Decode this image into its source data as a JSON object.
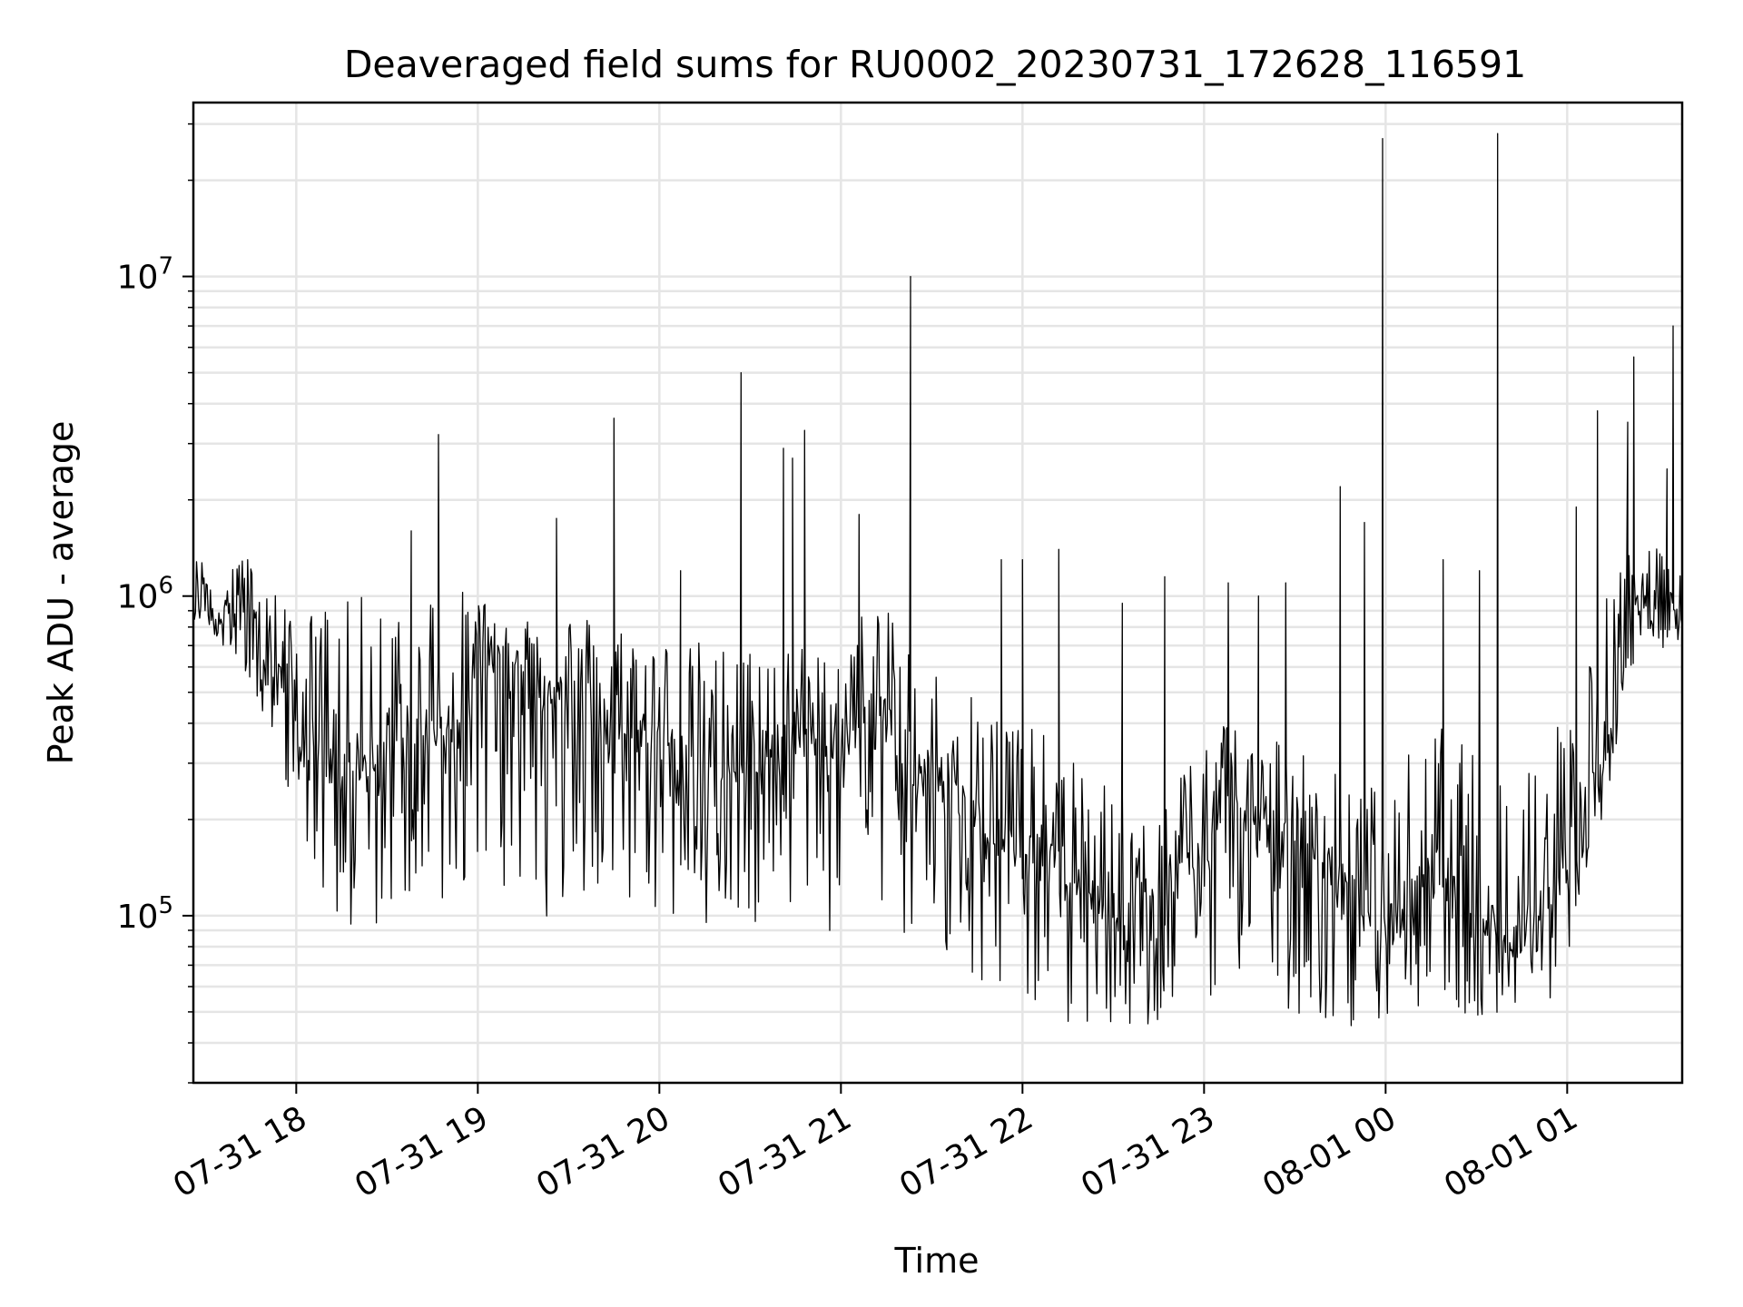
{
  "chart_data": {
    "type": "line",
    "title": "Deaveraged field sums for RU0002_20230731_172628_116591",
    "xlabel": "Time",
    "ylabel": "Peak ADU - average",
    "yscale": "log",
    "ylim": [
      30000,
      35000000
    ],
    "xlim": [
      "2023-07-31 17:26",
      "2023-08-01 01:38"
    ],
    "grid": true,
    "line_color": "#000000",
    "grid_color": "#e5e5e5",
    "x_ticks": [
      {
        "value": "2023-07-31 18:00",
        "label": "07-31 18"
      },
      {
        "value": "2023-07-31 19:00",
        "label": "07-31 19"
      },
      {
        "value": "2023-07-31 20:00",
        "label": "07-31 20"
      },
      {
        "value": "2023-07-31 21:00",
        "label": "07-31 21"
      },
      {
        "value": "2023-07-31 22:00",
        "label": "07-31 22"
      },
      {
        "value": "2023-07-31 23:00",
        "label": "07-31 23"
      },
      {
        "value": "2023-08-01 00:00",
        "label": "08-01 00"
      },
      {
        "value": "2023-08-01 01:00",
        "label": "08-01 01"
      }
    ],
    "y_ticks": [
      {
        "value": 100000,
        "base": "10",
        "exp": "5"
      },
      {
        "value": 1000000,
        "base": "10",
        "exp": "6"
      },
      {
        "value": 10000000,
        "base": "10",
        "exp": "7"
      }
    ],
    "series": [
      {
        "x": [
          "2023-07-31 17:26",
          "2023-07-31 17:30",
          "2023-07-31 17:35",
          "2023-07-31 17:40",
          "2023-07-31 17:45",
          "2023-07-31 17:50",
          "2023-07-31 17:55",
          "2023-07-31 18:00",
          "2023-07-31 18:05",
          "2023-07-31 18:10",
          "2023-07-31 18:15",
          "2023-07-31 18:20",
          "2023-07-31 18:25",
          "2023-07-31 18:30",
          "2023-07-31 18:35",
          "2023-07-31 18:40",
          "2023-07-31 18:45",
          "2023-07-31 18:50",
          "2023-07-31 18:55",
          "2023-07-31 19:00",
          "2023-07-31 19:05",
          "2023-07-31 19:10",
          "2023-07-31 19:15",
          "2023-07-31 19:20",
          "2023-07-31 19:25",
          "2023-07-31 19:30",
          "2023-07-31 19:35",
          "2023-07-31 19:40",
          "2023-07-31 19:45",
          "2023-07-31 19:50",
          "2023-07-31 19:55",
          "2023-07-31 20:00",
          "2023-07-31 20:05",
          "2023-07-31 20:10",
          "2023-07-31 20:15",
          "2023-07-31 20:20",
          "2023-07-31 20:25",
          "2023-07-31 20:30",
          "2023-07-31 20:35",
          "2023-07-31 20:40",
          "2023-07-31 20:45",
          "2023-07-31 20:50",
          "2023-07-31 20:55",
          "2023-07-31 21:00",
          "2023-07-31 21:05",
          "2023-07-31 21:10",
          "2023-07-31 21:15",
          "2023-07-31 21:20",
          "2023-07-31 21:25",
          "2023-07-31 21:30",
          "2023-07-31 21:35",
          "2023-07-31 21:40",
          "2023-07-31 21:45",
          "2023-07-31 21:50",
          "2023-07-31 21:55",
          "2023-07-31 22:00",
          "2023-07-31 22:05",
          "2023-07-31 22:10",
          "2023-07-31 22:15",
          "2023-07-31 22:20",
          "2023-07-31 22:25",
          "2023-07-31 22:30",
          "2023-07-31 22:35",
          "2023-07-31 22:40",
          "2023-07-31 22:45",
          "2023-07-31 22:50",
          "2023-07-31 22:55",
          "2023-07-31 23:00",
          "2023-07-31 23:05",
          "2023-07-31 23:10",
          "2023-07-31 23:15",
          "2023-07-31 23:20",
          "2023-07-31 23:25",
          "2023-07-31 23:30",
          "2023-07-31 23:35",
          "2023-07-31 23:40",
          "2023-07-31 23:45",
          "2023-07-31 23:50",
          "2023-07-31 23:55",
          "2023-08-01 00:00",
          "2023-08-01 00:05",
          "2023-08-01 00:10",
          "2023-08-01 00:15",
          "2023-08-01 00:20",
          "2023-08-01 00:25",
          "2023-08-01 00:30",
          "2023-08-01 00:35",
          "2023-08-01 00:40",
          "2023-08-01 00:45",
          "2023-08-01 00:50",
          "2023-08-01 00:55",
          "2023-08-01 01:00",
          "2023-08-01 01:05",
          "2023-08-01 01:10",
          "2023-08-01 01:15",
          "2023-08-01 01:20",
          "2023-08-01 01:25",
          "2023-08-01 01:30",
          "2023-08-01 01:35",
          "2023-08-01 01:38"
        ],
        "y": [
          1000000,
          950000,
          900000,
          1000000,
          800000,
          650000,
          550000,
          500000,
          350000,
          300000,
          280000,
          260000,
          300000,
          320000,
          340000,
          360000,
          380000,
          400000,
          420000,
          700000,
          650000,
          600000,
          550000,
          520000,
          500000,
          480000,
          450000,
          420000,
          400000,
          380000,
          360000,
          340000,
          320000,
          300000,
          300000,
          290000,
          280000,
          300000,
          320000,
          350000,
          360000,
          350000,
          340000,
          350000,
          380000,
          400000,
          420000,
          350000,
          300000,
          280000,
          250000,
          220000,
          200000,
          180000,
          170000,
          160000,
          150000,
          140000,
          130000,
          120000,
          110000,
          100000,
          95000,
          100000,
          110000,
          120000,
          140000,
          160000,
          180000,
          200000,
          210000,
          200000,
          180000,
          160000,
          140000,
          130000,
          120000,
          110000,
          100000,
          95000,
          105000,
          120000,
          140000,
          130000,
          110000,
          100000,
          95000,
          90000,
          90000,
          100000,
          120000,
          150000,
          200000,
          300000,
          450000,
          700000,
          1000000,
          950000,
          900000,
          1000000
        ],
        "upper": [
          1300000,
          1400000,
          1200000,
          1500000,
          1300000,
          1200000,
          1000000,
          880000,
          900000,
          1000000,
          950000,
          1000000,
          1050000,
          1000000,
          1100000,
          1200000,
          1100000,
          1000000,
          1050000,
          1000000,
          950000,
          900000,
          950000,
          900000,
          850000,
          900000,
          900000,
          850000,
          800000,
          850000,
          800000,
          750000,
          750000,
          700000,
          750000,
          700000,
          700000,
          700000,
          720000,
          750000,
          700000,
          700000,
          650000,
          700000,
          800000,
          1100000,
          900000,
          800000,
          700000,
          600000,
          600000,
          550000,
          550000,
          500000,
          450000,
          420000,
          380000,
          350000,
          320000,
          300000,
          280000,
          250000,
          230000,
          230000,
          250000,
          280000,
          320000,
          380000,
          420000,
          450000,
          420000,
          400000,
          380000,
          350000,
          320000,
          300000,
          280000,
          260000,
          260000,
          260000,
          300000,
          350000,
          400000,
          400000,
          350000,
          320000,
          300000,
          300000,
          320000,
          350000,
          400000,
          500000,
          600000,
          800000,
          1200000,
          1400000,
          1500000,
          1400000,
          1200000,
          1300000
        ],
        "lower": [
          850000,
          800000,
          700000,
          650000,
          500000,
          400000,
          300000,
          200000,
          150000,
          100000,
          90000,
          85000,
          90000,
          100000,
          110000,
          120000,
          110000,
          100000,
          110000,
          120000,
          130000,
          120000,
          110000,
          100000,
          90000,
          100000,
          110000,
          100000,
          95000,
          100000,
          100000,
          95000,
          90000,
          90000,
          85000,
          90000,
          85000,
          90000,
          95000,
          100000,
          95000,
          90000,
          85000,
          90000,
          95000,
          100000,
          95000,
          85000,
          80000,
          70000,
          65000,
          60000,
          58000,
          55000,
          52000,
          50000,
          48000,
          46000,
          45000,
          44000,
          43000,
          42000,
          42000,
          43000,
          45000,
          47000,
          50000,
          55000,
          58000,
          60000,
          58000,
          55000,
          52000,
          50000,
          48000,
          47000,
          46000,
          45000,
          44000,
          43000,
          45000,
          50000,
          55000,
          52000,
          50000,
          48000,
          46000,
          46000,
          47000,
          50000,
          55000,
          70000,
          100000,
          150000,
          250000,
          500000,
          800000,
          700000,
          650000,
          800000
        ]
      }
    ],
    "spikes": [
      {
        "x": "2023-07-31 18:38",
        "y": 1600000
      },
      {
        "x": "2023-07-31 18:47",
        "y": 3200000
      },
      {
        "x": "2023-07-31 19:26",
        "y": 1750000
      },
      {
        "x": "2023-07-31 19:45",
        "y": 3600000
      },
      {
        "x": "2023-07-31 20:07",
        "y": 1200000
      },
      {
        "x": "2023-07-31 20:27",
        "y": 5000000
      },
      {
        "x": "2023-07-31 20:41",
        "y": 2900000
      },
      {
        "x": "2023-07-31 20:44",
        "y": 2700000
      },
      {
        "x": "2023-07-31 20:48",
        "y": 3300000
      },
      {
        "x": "2023-07-31 21:06",
        "y": 1800000
      },
      {
        "x": "2023-07-31 21:23",
        "y": 10000000
      },
      {
        "x": "2023-07-31 21:53",
        "y": 1300000
      },
      {
        "x": "2023-07-31 22:00",
        "y": 1300000
      },
      {
        "x": "2023-07-31 22:12",
        "y": 1400000
      },
      {
        "x": "2023-07-31 22:33",
        "y": 950000
      },
      {
        "x": "2023-07-31 22:47",
        "y": 1150000
      },
      {
        "x": "2023-07-31 23:08",
        "y": 1100000
      },
      {
        "x": "2023-07-31 23:18",
        "y": 1000000
      },
      {
        "x": "2023-07-31 23:27",
        "y": 1100000
      },
      {
        "x": "2023-07-31 23:45",
        "y": 2200000
      },
      {
        "x": "2023-07-31 23:53",
        "y": 1700000
      },
      {
        "x": "2023-07-31 23:59",
        "y": 27000000
      },
      {
        "x": "2023-08-01 00:19",
        "y": 1300000
      },
      {
        "x": "2023-08-01 00:31",
        "y": 1200000
      },
      {
        "x": "2023-08-01 00:37",
        "y": 28000000
      },
      {
        "x": "2023-08-01 01:03",
        "y": 1900000
      },
      {
        "x": "2023-08-01 01:10",
        "y": 3800000
      },
      {
        "x": "2023-08-01 01:20",
        "y": 3500000
      },
      {
        "x": "2023-08-01 01:22",
        "y": 5600000
      },
      {
        "x": "2023-08-01 01:33",
        "y": 2500000
      },
      {
        "x": "2023-08-01 01:35",
        "y": 7000000
      }
    ]
  }
}
